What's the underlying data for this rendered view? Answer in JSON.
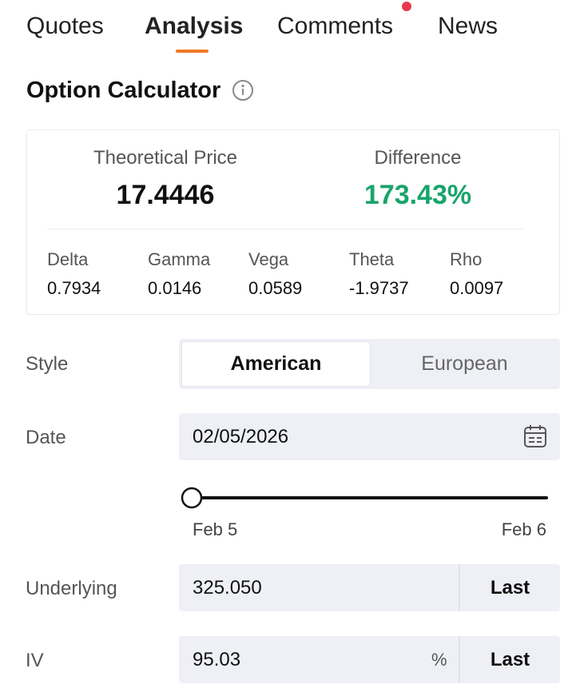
{
  "header": {
    "tabs": [
      "Quotes",
      "Analysis",
      "Comments",
      "News"
    ]
  },
  "calculator": {
    "title": "Option Calculator"
  },
  "summary": {
    "theoretical_price": {
      "label": "Theoretical Price",
      "value": "17.4446"
    },
    "difference": {
      "label": "Difference",
      "value": "173.43%"
    },
    "greeks": [
      {
        "label": "Delta",
        "value": "0.7934"
      },
      {
        "label": "Gamma",
        "value": "0.0146"
      },
      {
        "label": "Vega",
        "value": "0.0589"
      },
      {
        "label": "Theta",
        "value": "-1.9737"
      },
      {
        "label": "Rho",
        "value": "0.0097"
      }
    ]
  },
  "form": {
    "style": {
      "label": "Style",
      "options": [
        "American",
        "European"
      ]
    },
    "date": {
      "label": "Date",
      "value": "02/05/2026",
      "slider_start": "Feb 5",
      "slider_end": "Feb 6"
    },
    "underlying": {
      "label": "Underlying",
      "value": "325.050",
      "button": "Last"
    },
    "iv": {
      "label": "IV",
      "value": "95.03",
      "unit": "%",
      "button": "Last"
    }
  }
}
